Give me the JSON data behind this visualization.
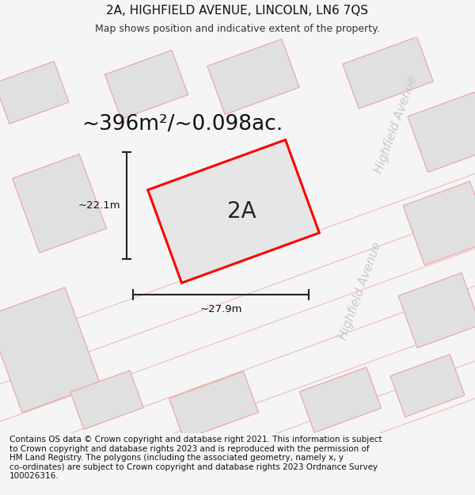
{
  "title": "2A, HIGHFIELD AVENUE, LINCOLN, LN6 7QS",
  "subtitle": "Map shows position and indicative extent of the property.",
  "area_text": "~396m²/~0.098ac.",
  "label_2a": "2A",
  "dim_width": "~27.9m",
  "dim_height": "~22.1m",
  "street_label": "Highfield Avenue",
  "footer": "Contains OS data © Crown copyright and database right 2021. This information is subject\nto Crown copyright and database rights 2023 and is reproduced with the permission of\nHM Land Registry. The polygons (including the associated geometry, namely x, y\nco-ordinates) are subject to Crown copyright and database rights 2023 Ordnance Survey\n100026316.",
  "bg_color": "#f5f5f5",
  "map_bg": "#ffffff",
  "plot_fill": "#e6e6e6",
  "plot_edge": "#ff0000",
  "nearby_fill": "#e0e0e0",
  "nearby_edge": "#f0a0a0",
  "dim_line_color": "#222222",
  "street_text_color": "#c8c8c8",
  "title_fontsize": 11,
  "subtitle_fontsize": 9,
  "area_fontsize": 19,
  "label_fontsize": 20,
  "dim_fontsize": 9.5,
  "street_fontsize": 11,
  "footer_fontsize": 7.5,
  "tilt": 20
}
